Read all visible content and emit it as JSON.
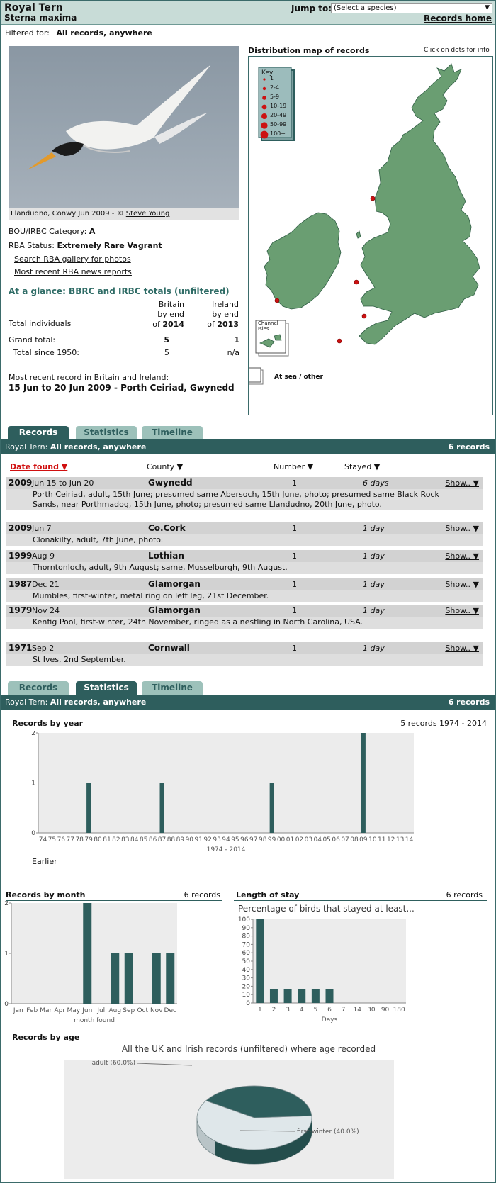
{
  "header": {
    "common_name": "Royal Tern",
    "scientific_name": "Sterna maxima",
    "jump_label": "Jump to:",
    "jump_select_value": "(Select a species)",
    "records_home": "Records home"
  },
  "filter": {
    "label": "Filtered for:",
    "value": "All records, anywhere"
  },
  "photo": {
    "caption_text": "Llandudno, Conwy Jun 2009 - © ",
    "credit": "Steve Young"
  },
  "info": {
    "category_label": "BOU/IRBC Category:",
    "category_value": "A",
    "status_label": "RBA Status:",
    "status_value": "Extremely Rare Vagrant",
    "gallery_link": "Search RBA gallery for photos",
    "news_link": "Most recent RBA news reports"
  },
  "glance": {
    "title": "At a glance: BBRC and IRBC totals (unfiltered)",
    "britain_head1": "Britain",
    "britain_head2": "by end",
    "britain_head3": "of",
    "britain_year": "2014",
    "ireland_head1": "Ireland",
    "ireland_head2": "by end",
    "ireland_head3": "of",
    "ireland_year": "2013",
    "total_individuals": "Total individuals",
    "grand_total_label": "Grand total:",
    "grand_total_britain": "5",
    "grand_total_ireland": "1",
    "since_label": "Total since 1950:",
    "since_britain": "5",
    "since_ireland": "n/a",
    "recent_label": "Most recent record in Britain and Ireland:",
    "recent_value": "15 Jun to 20 Jun 2009 - Porth Ceiriad, Gwynedd"
  },
  "map": {
    "title": "Distribution map of records",
    "hint": "Click on dots for info",
    "key_title": "Key",
    "key_items": [
      "1",
      "2-4",
      "5-9",
      "10-19",
      "20-49",
      "50-99",
      "100+"
    ],
    "channel_label_1": "Channel",
    "channel_label_2": "Isles",
    "at_sea_label": "At sea / other",
    "land_color": "#6a9e72",
    "dot_color": "#cc1111"
  },
  "tabs": {
    "records": "Records",
    "statistics": "Statistics",
    "timeline": "Timeline"
  },
  "bar": {
    "species": "Royal Tern:",
    "filter": "All records, anywhere",
    "count": "6 records"
  },
  "records_table": {
    "columns": [
      "Date found ▼",
      "County ▼",
      "Number ▼",
      "Stayed ▼"
    ],
    "show_label": "Show.. ▼",
    "rows": [
      {
        "year": "2009",
        "date": "Jun 15 to Jun 20",
        "county": "Gwynedd",
        "number": "1",
        "stayed": "6 days",
        "desc": "Porth Ceiriad, adult, 15th June; presumed same Abersoch, 15th June, photo; presumed same Black Rock Sands, near Porthmadog, 15th June, photo; presumed same Llandudno, 20th June, photo."
      },
      {
        "year": "2009",
        "date": "Jun 7",
        "county": "Co.Cork",
        "number": "1",
        "stayed": "1 day",
        "desc": "Clonakilty, adult, 7th June, photo."
      },
      {
        "year": "1999",
        "date": "Aug 9",
        "county": "Lothian",
        "number": "1",
        "stayed": "1 day",
        "desc": "Thorntonloch, adult, 9th August; same, Musselburgh, 9th August."
      },
      {
        "year": "1987",
        "date": "Dec 21",
        "county": "Glamorgan",
        "number": "1",
        "stayed": "1 day",
        "desc": "Mumbles, first-winter, metal ring on left leg, 21st December."
      },
      {
        "year": "1979",
        "date": "Nov 24",
        "county": "Glamorgan",
        "number": "1",
        "stayed": "1 day",
        "desc": "Kenfig Pool, first-winter, 24th November, ringed as a nestling in North Carolina, USA."
      },
      {
        "year": "1971",
        "date": "Sep 2",
        "county": "Cornwall",
        "number": "1",
        "stayed": "1 day",
        "desc": "St Ives, 2nd September."
      }
    ]
  },
  "stats": {
    "by_year_title": "Records by year",
    "by_year_summary": "5 records 1974 - 2014",
    "earlier_link": "Earlier",
    "by_month_title": "Records by month",
    "by_month_count": "6 records",
    "stay_title": "Length of stay",
    "stay_count": "6 records",
    "by_age_title": "Records by age"
  },
  "chart_data": [
    {
      "type": "bar",
      "title": "Records by year",
      "xlabel": "1974 - 2014",
      "categories": [
        "74",
        "75",
        "76",
        "77",
        "78",
        "79",
        "80",
        "81",
        "82",
        "83",
        "84",
        "85",
        "86",
        "87",
        "88",
        "89",
        "90",
        "91",
        "92",
        "93",
        "94",
        "95",
        "96",
        "97",
        "98",
        "99",
        "00",
        "01",
        "02",
        "03",
        "04",
        "05",
        "06",
        "07",
        "08",
        "09",
        "10",
        "11",
        "12",
        "13",
        "14"
      ],
      "values": [
        0,
        0,
        0,
        0,
        0,
        1,
        0,
        0,
        0,
        0,
        0,
        0,
        0,
        1,
        0,
        0,
        0,
        0,
        0,
        0,
        0,
        0,
        0,
        0,
        0,
        1,
        0,
        0,
        0,
        0,
        0,
        0,
        0,
        0,
        0,
        2,
        0,
        0,
        0,
        0,
        0
      ],
      "ylim": [
        0,
        2
      ],
      "yticks": [
        "0",
        "1",
        "2"
      ],
      "bar_color": "#2e5e5d"
    },
    {
      "type": "bar",
      "title": "Records by month",
      "xlabel": "month found",
      "categories": [
        "Jan",
        "Feb",
        "Mar",
        "Apr",
        "May",
        "Jun",
        "Jul",
        "Aug",
        "Sep",
        "Oct",
        "Nov",
        "Dec"
      ],
      "values": [
        0,
        0,
        0,
        0,
        0,
        2,
        0,
        1,
        1,
        0,
        1,
        1
      ],
      "ylim": [
        0,
        2
      ],
      "yticks": [
        "0",
        "1",
        "2"
      ],
      "bar_color": "#2e5e5d"
    },
    {
      "type": "bar",
      "title": "Length of stay",
      "subtitle": "Percentage of birds that stayed at least...",
      "xlabel": "Days",
      "categories": [
        "1",
        "2",
        "3",
        "4",
        "5",
        "6",
        "7",
        "14",
        "30",
        "90",
        "180"
      ],
      "values": [
        100,
        16.7,
        16.7,
        16.7,
        16.7,
        16.7,
        0,
        0,
        0,
        0,
        0
      ],
      "ylim": [
        0,
        100
      ],
      "yticks": [
        "0",
        "10",
        "20",
        "30",
        "40",
        "50",
        "60",
        "70",
        "80",
        "90",
        "100"
      ],
      "bar_color": "#2e5e5d"
    },
    {
      "type": "pie",
      "title": "Records by age",
      "subtitle": "All the UK and Irish records (unfiltered) where age recorded",
      "slices": [
        {
          "label": "adult (60.0%)",
          "value": 60,
          "color": "#dfe7ea"
        },
        {
          "label": "first-winter (40.0%)",
          "value": 40,
          "color": "#2e5e5d"
        }
      ]
    }
  ]
}
